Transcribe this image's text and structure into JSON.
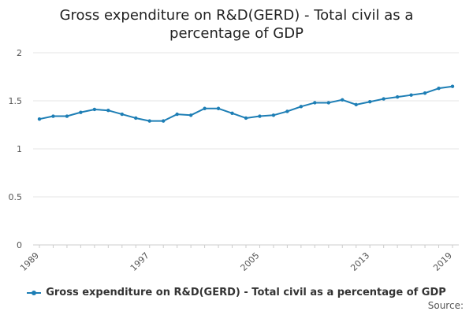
{
  "chart_data": {
    "type": "line",
    "title": "Gross expenditure on R&D(GERD) - Total civil as a percentage of GDP",
    "xlabel": "",
    "ylabel": "",
    "x": [
      1989,
      1990,
      1991,
      1992,
      1993,
      1994,
      1995,
      1996,
      1997,
      1998,
      1999,
      2000,
      2001,
      2002,
      2003,
      2004,
      2005,
      2006,
      2007,
      2008,
      2009,
      2010,
      2011,
      2012,
      2013,
      2014,
      2015,
      2016,
      2017,
      2018,
      2019
    ],
    "series": [
      {
        "name": "Gross expenditure on R&D(GERD) - Total civil as a percentage of GDP",
        "values": [
          1.31,
          1.34,
          1.34,
          1.38,
          1.41,
          1.4,
          1.36,
          1.32,
          1.29,
          1.29,
          1.36,
          1.35,
          1.42,
          1.42,
          1.37,
          1.32,
          1.34,
          1.35,
          1.39,
          1.44,
          1.48,
          1.48,
          1.51,
          1.46,
          1.49,
          1.52,
          1.54,
          1.56,
          1.58,
          1.63,
          1.65
        ]
      }
    ],
    "xticks": [
      "1989",
      "1997",
      "2005",
      "2013",
      "2019"
    ],
    "yticks": [
      "0",
      "0.5",
      "1",
      "1.5",
      "2"
    ],
    "xlim": [
      1989,
      2019
    ],
    "ylim": [
      0,
      2
    ],
    "grid": true,
    "legend_position": "bottom",
    "line_color": "#1d7eb5",
    "source_label": "Source:"
  }
}
